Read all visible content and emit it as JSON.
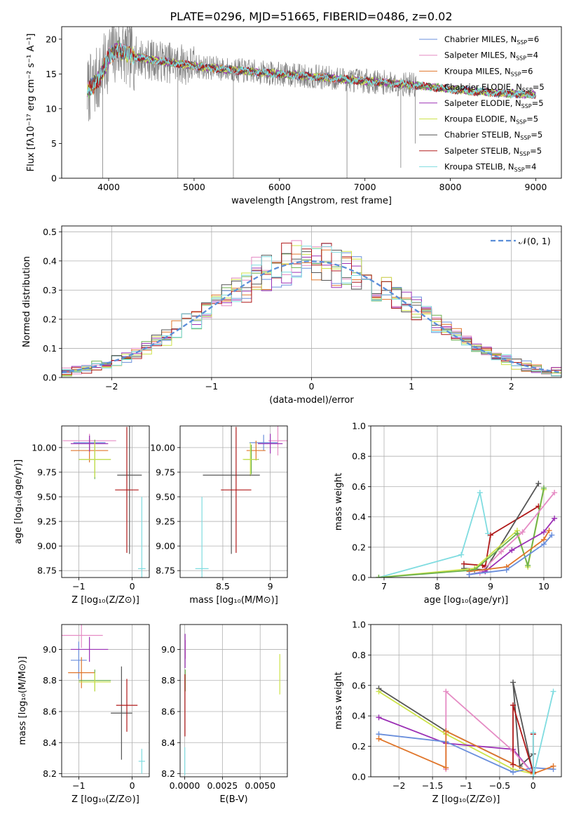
{
  "figure_title": "PLATE=0296, MJD=51665, FIBERID=0486, z=0.02",
  "colors": {
    "Chabrier MILES": "#6a8fdc",
    "Salpeter MILES": "#e58bc4",
    "Kroupa MILES": "#e0762b",
    "Chabrier ELODIE": "#6cb04c",
    "Salpeter ELODIE": "#9b30b5",
    "Kroupa ELODIE": "#cde34a",
    "Chabrier STELIB": "#555555",
    "Salpeter STELIB": "#b01919",
    "Kroupa STELIB": "#7fdce0"
  },
  "chart_data": [
    {
      "id": "spectrum",
      "type": "line",
      "title": "PLATE=0296, MJD=51665, FIBERID=0486, z=0.02",
      "xlabel": "wavelength [Angstrom, rest frame]",
      "ylabel": "Flux [fλ10⁻¹⁷ erg cm⁻² s⁻¹ A⁻¹]",
      "xlim": [
        3450,
        9300
      ],
      "ylim": [
        0,
        21.8
      ],
      "xticks": [
        4000,
        5000,
        6000,
        7000,
        8000,
        9000
      ],
      "yticks": [
        0,
        5,
        10,
        15,
        20
      ],
      "grid": false,
      "legend_position": "top-right",
      "legend": [
        {
          "main": "Chabrier MILES, N",
          "sub": "SSP",
          "tail": "=6"
        },
        {
          "main": "Salpeter MILES, N",
          "sub": "SSP",
          "tail": "=4"
        },
        {
          "main": "Kroupa MILES, N",
          "sub": "SSP",
          "tail": "=6"
        },
        {
          "main": "Chabrier ELODIE, N",
          "sub": "SSP",
          "tail": "=5"
        },
        {
          "main": "Salpeter ELODIE, N",
          "sub": "SSP",
          "tail": "=5"
        },
        {
          "main": "Kroupa ELODIE, N",
          "sub": "SSP",
          "tail": "=5"
        },
        {
          "main": "Chabrier STELIB, N",
          "sub": "SSP",
          "tail": "=5"
        },
        {
          "main": "Salpeter STELIB, N",
          "sub": "SSP",
          "tail": "=5"
        },
        {
          "main": "Kroupa STELIB, N",
          "sub": "SSP",
          "tail": "=4"
        }
      ],
      "continuum": [
        [
          3750,
          12.5
        ],
        [
          3900,
          14.5
        ],
        [
          4000,
          17.5
        ],
        [
          4100,
          18.5
        ],
        [
          4300,
          17.5
        ],
        [
          4500,
          17.0
        ],
        [
          4800,
          16.5
        ],
        [
          5100,
          16.0
        ],
        [
          5500,
          15.5
        ],
        [
          6000,
          15.0
        ],
        [
          6500,
          14.5
        ],
        [
          7000,
          14.0
        ],
        [
          7500,
          13.5
        ],
        [
          8000,
          12.8
        ],
        [
          8500,
          12.3
        ],
        [
          9000,
          12.0
        ]
      ],
      "model_clip": [
        7600,
        9000
      ],
      "dips": [
        {
          "x": 3930,
          "y": 0
        },
        {
          "x": 4810,
          "y": 0
        },
        {
          "x": 5460,
          "y": 0
        },
        {
          "x": 6790,
          "y": 0
        },
        {
          "x": 7420,
          "y": 1.5
        },
        {
          "x": 7590,
          "y": 5
        }
      ]
    },
    {
      "id": "residual_hist",
      "type": "line",
      "xlabel": "(data-model)/error",
      "ylabel": "Normed distribution",
      "xlim": [
        -2.5,
        2.5
      ],
      "ylim": [
        0,
        0.52
      ],
      "xticks": [
        -2,
        -1,
        0,
        1,
        2
      ],
      "yticks": [
        0.0,
        0.1,
        0.2,
        0.3,
        0.4,
        0.5
      ],
      "grid": true,
      "legend_position": "top-right",
      "legend_label": "𝒩(0, 1)",
      "bin_width": 0.1,
      "normal_curve": {
        "mu": 0,
        "sigma": 1
      }
    },
    {
      "id": "age_vs_Z",
      "type": "scatter",
      "xlabel": "Z [log₁₀(Z/Z⊙)]",
      "ylabel": "age  [log₁₀(age/yr)]",
      "xlim": [
        -1.32,
        0.32
      ],
      "ylim": [
        8.68,
        10.22
      ],
      "xticks": [
        -1,
        0
      ],
      "yticks": [
        8.75,
        9.0,
        9.25,
        9.5,
        9.75,
        10.0
      ],
      "grid": true,
      "points": [
        {
          "model": "Chabrier MILES",
          "x": -0.8,
          "xerr": 0.3,
          "y": 10.05,
          "yerr": 0.08
        },
        {
          "model": "Salpeter MILES",
          "x": -0.8,
          "xerr": 0.5,
          "y": 10.07,
          "yerr": 0.07
        },
        {
          "model": "Kroupa MILES",
          "x": -0.8,
          "xerr": 0.35,
          "y": 9.97,
          "yerr": 0.12
        },
        {
          "model": "Chabrier ELODIE",
          "x": -0.7,
          "xerr": 0.3,
          "y": 9.88,
          "yerr": 0.2
        },
        {
          "model": "Salpeter ELODIE",
          "x": -0.8,
          "xerr": 0.35,
          "y": 10.04,
          "yerr": 0.08
        },
        {
          "model": "Kroupa ELODIE",
          "x": -0.7,
          "xerr": 0.3,
          "y": 9.88,
          "yerr": 0.18
        },
        {
          "model": "Chabrier STELIB",
          "x": -0.05,
          "xerr": 0.23,
          "y": 9.72,
          "yerr": 0.8
        },
        {
          "model": "Salpeter STELIB",
          "x": -0.1,
          "xerr": 0.22,
          "y": 9.57,
          "yerr": 0.64
        },
        {
          "model": "Kroupa STELIB",
          "x": 0.18,
          "xerr": 0.07,
          "y": 8.77,
          "yerr": 0.73
        }
      ]
    },
    {
      "id": "age_vs_mass",
      "type": "scatter",
      "xlabel": "mass [log₁₀(M/M⊙)]",
      "ylabel": "",
      "xlim": [
        8.05,
        9.18
      ],
      "ylim": [
        8.68,
        10.22
      ],
      "xticks": [
        8.5,
        9.0
      ],
      "yticks": [
        8.75,
        9.0,
        9.25,
        9.5,
        9.75,
        10.0
      ],
      "grid": true,
      "points": [
        {
          "model": "Chabrier MILES",
          "x": 8.93,
          "xerr": 0.15,
          "y": 10.05,
          "yerr": 0.08
        },
        {
          "model": "Salpeter MILES",
          "x": 9.08,
          "xerr": 0.1,
          "y": 10.07,
          "yerr": 0.15
        },
        {
          "model": "Kroupa MILES",
          "x": 8.85,
          "xerr": 0.1,
          "y": 9.97,
          "yerr": 0.1
        },
        {
          "model": "Chabrier ELODIE",
          "x": 8.8,
          "xerr": 0.08,
          "y": 9.88,
          "yerr": 0.15
        },
        {
          "model": "Salpeter ELODIE",
          "x": 9.0,
          "xerr": 0.13,
          "y": 10.04,
          "yerr": 0.1
        },
        {
          "model": "Kroupa ELODIE",
          "x": 8.79,
          "xerr": 0.08,
          "y": 9.88,
          "yerr": 0.17
        },
        {
          "model": "Chabrier STELIB",
          "x": 8.59,
          "xerr": 0.3,
          "y": 9.72,
          "yerr": 0.8
        },
        {
          "model": "Salpeter STELIB",
          "x": 8.64,
          "xerr": 0.16,
          "y": 9.57,
          "yerr": 0.64
        },
        {
          "model": "Kroupa STELIB",
          "x": 8.28,
          "xerr": 0.07,
          "y": 8.77,
          "yerr": 0.73
        }
      ]
    },
    {
      "id": "mass_weight_vs_age",
      "type": "line",
      "xlabel": "age  [log₁₀(age/yr)]",
      "ylabel": "mass weight",
      "xlim": [
        6.75,
        10.33
      ],
      "ylim": [
        0,
        1.0
      ],
      "xticks": [
        7,
        8,
        9,
        10
      ],
      "yticks": [
        0.0,
        0.2,
        0.4,
        0.6,
        0.8,
        1.0
      ],
      "grid": true,
      "series": [
        {
          "model": "Kroupa STELIB",
          "x": [
            6.9,
            8.45,
            8.8,
            8.95
          ],
          "y": [
            0.0,
            0.15,
            0.56,
            0.29
          ]
        },
        {
          "model": "Salpeter STELIB",
          "x": [
            8.5,
            8.85,
            8.9,
            9.0,
            9.9
          ],
          "y": [
            0.09,
            0.08,
            0.07,
            0.28,
            0.47
          ]
        },
        {
          "model": "Chabrier STELIB",
          "x": [
            8.5,
            8.9,
            9.9
          ],
          "y": [
            0.06,
            0.05,
            0.62
          ]
        },
        {
          "model": "Kroupa ELODIE",
          "x": [
            6.9,
            8.7,
            9.5,
            9.7,
            10.0
          ],
          "y": [
            0.0,
            0.06,
            0.31,
            0.07,
            0.58
          ]
        },
        {
          "model": "Chabrier ELODIE",
          "x": [
            6.9,
            8.7,
            9.5,
            9.7,
            10.0
          ],
          "y": [
            0.0,
            0.05,
            0.29,
            0.08,
            0.59
          ]
        },
        {
          "model": "Salpeter ELODIE",
          "x": [
            8.6,
            8.9,
            9.4,
            10.0,
            10.2
          ],
          "y": [
            0.02,
            0.04,
            0.18,
            0.3,
            0.39
          ]
        },
        {
          "model": "Salpeter MILES",
          "x": [
            8.8,
            9.2,
            9.6,
            10.2
          ],
          "y": [
            0.03,
            0.17,
            0.3,
            0.56
          ]
        },
        {
          "model": "Kroupa MILES",
          "x": [
            8.6,
            9.3,
            10.0,
            10.1
          ],
          "y": [
            0.04,
            0.07,
            0.25,
            0.31
          ]
        },
        {
          "model": "Chabrier MILES",
          "x": [
            8.6,
            9.3,
            10.0,
            10.15
          ],
          "y": [
            0.02,
            0.05,
            0.22,
            0.28
          ]
        }
      ]
    },
    {
      "id": "mass_vs_Z",
      "type": "scatter",
      "xlabel": "Z [log₁₀(Z/Z⊙)]",
      "ylabel": "mass [log₁₀(M/M⊙)]",
      "xlim": [
        -1.32,
        0.32
      ],
      "ylim": [
        8.18,
        9.16
      ],
      "xticks": [
        -1,
        0
      ],
      "yticks": [
        8.2,
        8.4,
        8.6,
        8.8,
        9.0
      ],
      "grid": true,
      "points": [
        {
          "model": "Chabrier MILES",
          "x": -1.0,
          "xerr": 0.15,
          "y": 8.93,
          "yerr": 0.12
        },
        {
          "model": "Salpeter MILES",
          "x": -0.95,
          "xerr": 0.4,
          "y": 9.09,
          "yerr": 0.08
        },
        {
          "model": "Kroupa MILES",
          "x": -0.95,
          "xerr": 0.25,
          "y": 8.85,
          "yerr": 0.1
        },
        {
          "model": "Chabrier ELODIE",
          "x": -0.7,
          "xerr": 0.3,
          "y": 8.8,
          "yerr": 0.07
        },
        {
          "model": "Salpeter ELODIE",
          "x": -0.8,
          "xerr": 0.35,
          "y": 9.0,
          "yerr": 0.08
        },
        {
          "model": "Kroupa ELODIE",
          "x": -0.7,
          "xerr": 0.3,
          "y": 8.79,
          "yerr": 0.06
        },
        {
          "model": "Chabrier STELIB",
          "x": -0.2,
          "xerr": 0.2,
          "y": 8.59,
          "yerr": 0.3
        },
        {
          "model": "Salpeter STELIB",
          "x": -0.1,
          "xerr": 0.2,
          "y": 8.64,
          "yerr": 0.17
        },
        {
          "model": "Kroupa STELIB",
          "x": 0.18,
          "xerr": 0.06,
          "y": 8.28,
          "yerr": 0.08
        }
      ]
    },
    {
      "id": "mass_vs_EBV",
      "type": "scatter",
      "xlabel": "E(B-V)",
      "ylabel": "",
      "xlim": [
        -0.0003,
        0.0068
      ],
      "ylim": [
        8.18,
        9.16
      ],
      "xticks": [
        0.0,
        0.0025,
        0.005
      ],
      "xticklabels": [
        "0.0000",
        "0.0025",
        "0.0050"
      ],
      "yticks": [
        8.2,
        8.4,
        8.6,
        8.8,
        9.0
      ],
      "grid": true,
      "points": [
        {
          "model": "Salpeter MILES",
          "x": 5e-05,
          "y": 9.0,
          "yerr": 0.06
        },
        {
          "model": "Salpeter ELODIE",
          "x": 3e-05,
          "y": 8.99,
          "yerr": 0.11
        },
        {
          "model": "Chabrier ELODIE",
          "x": 4e-05,
          "y": 8.8,
          "yerr": 0.07
        },
        {
          "model": "Salpeter STELIB",
          "x": 2e-05,
          "y": 8.64,
          "yerr": 0.2
        },
        {
          "model": "Kroupa STELIB",
          "x": 1e-05,
          "y": 8.28,
          "yerr": 0.09
        },
        {
          "model": "Kroupa ELODIE",
          "x": 0.0063,
          "y": 8.84,
          "yerr": 0.13
        }
      ]
    },
    {
      "id": "mass_weight_vs_Z",
      "type": "line",
      "xlabel": "Z [log₁₀(Z/Z⊙)]",
      "ylabel": "mass weight",
      "xlim": [
        -2.42,
        0.42
      ],
      "ylim": [
        0,
        1.0
      ],
      "xticks": [
        -2.0,
        -1.5,
        -1.0,
        -0.5,
        0.0
      ],
      "yticks": [
        0.0,
        0.2,
        0.4,
        0.6,
        0.8,
        1.0
      ],
      "grid": true,
      "series": [
        {
          "model": "Chabrier STELIB",
          "x": [
            -2.3,
            -1.3,
            0.0,
            -0.3,
            -0.2,
            0.0
          ],
          "y": [
            0.58,
            0.3,
            0.02,
            0.62,
            0.07,
            0.15
          ]
        },
        {
          "model": "Kroupa ELODIE",
          "x": [
            -2.3,
            -1.3,
            -0.3,
            0.0
          ],
          "y": [
            0.56,
            0.28,
            0.05,
            0.02
          ]
        },
        {
          "model": "Salpeter ELODIE",
          "x": [
            -2.3,
            -1.3,
            -0.3,
            0.0
          ],
          "y": [
            0.39,
            0.22,
            0.18,
            0.02
          ]
        },
        {
          "model": "Salpeter MILES",
          "x": [
            -1.3,
            -1.3,
            -0.3,
            0.0
          ],
          "y": [
            0.05,
            0.56,
            0.17,
            0.02
          ]
        },
        {
          "model": "Chabrier MILES",
          "x": [
            -2.3,
            -1.3,
            -0.3,
            0.0,
            0.3
          ],
          "y": [
            0.28,
            0.23,
            0.03,
            0.06,
            0.05
          ]
        },
        {
          "model": "Kroupa MILES",
          "x": [
            -2.3,
            -1.3,
            -1.3,
            0.0,
            0.3
          ],
          "y": [
            0.25,
            0.06,
            0.3,
            0.02,
            0.07
          ]
        },
        {
          "model": "Salpeter STELIB",
          "x": [
            -0.3,
            -0.3,
            0.0,
            0.0
          ],
          "y": [
            0.08,
            0.47,
            0.03,
            0.28
          ]
        },
        {
          "model": "Kroupa STELIB",
          "x": [
            0.0,
            0.0,
            0.3
          ],
          "y": [
            0.29,
            0.0,
            0.56
          ]
        }
      ]
    }
  ]
}
